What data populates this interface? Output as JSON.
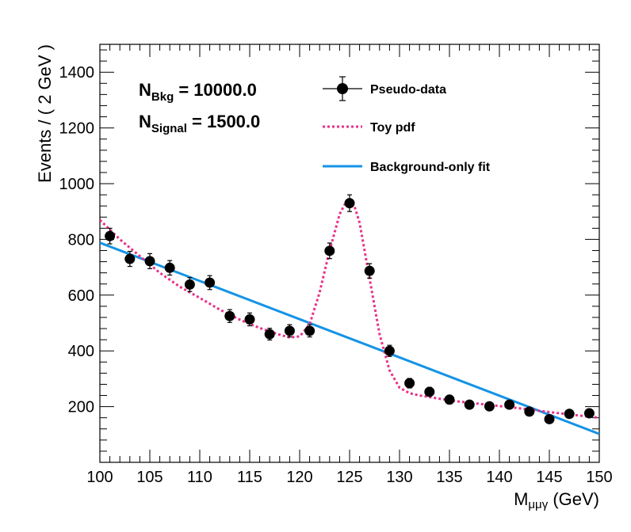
{
  "chart_data": {
    "type": "scatter",
    "xlabel": {
      "main": "M",
      "sub": "μμγ",
      "unit": " (GeV)"
    },
    "ylabel": "Events / ( 2 GeV )",
    "xlim": [
      100,
      150
    ],
    "ylim": [
      0,
      1500
    ],
    "x_ticks": [
      100,
      105,
      110,
      115,
      120,
      125,
      130,
      135,
      140,
      145,
      150
    ],
    "y_ticks": [
      200,
      400,
      600,
      800,
      1000,
      1200,
      1400
    ],
    "annotations": [
      {
        "main": "N",
        "sub": "Bkg",
        "value": " = 10000.0"
      },
      {
        "main": "N",
        "sub": "Signal",
        "value": " = 1500.0"
      }
    ],
    "legend": {
      "position": "top-center",
      "entries": [
        {
          "label": "Pseudo-data",
          "style": "marker"
        },
        {
          "label": "Toy pdf",
          "style": "dotted",
          "color": "#e8308a"
        },
        {
          "label": "Background-only fit",
          "style": "line",
          "color": "#1593e6"
        }
      ]
    },
    "series": [
      {
        "name": "Pseudo-data",
        "style": "marker",
        "color": "#000000",
        "x": [
          101,
          103,
          105,
          107,
          109,
          111,
          113,
          115,
          117,
          119,
          121,
          123,
          125,
          127,
          129,
          131,
          133,
          135,
          137,
          139,
          141,
          143,
          145,
          147,
          149
        ],
        "y": [
          812,
          730,
          722,
          698,
          638,
          645,
          525,
          513,
          460,
          472,
          472,
          759,
          930,
          687,
          400,
          284,
          253,
          225,
          207,
          201,
          207,
          182,
          155,
          174,
          176
        ],
        "yerr": [
          28,
          27,
          27,
          26,
          25,
          25,
          23,
          23,
          21,
          22,
          22,
          28,
          30,
          26,
          20,
          17,
          16,
          15,
          14,
          14,
          14,
          13,
          12,
          13,
          13
        ]
      },
      {
        "name": "Toy pdf",
        "style": "dotted",
        "color": "#e8308a",
        "x": [
          100,
          102,
          104,
          106,
          108,
          110,
          112,
          114,
          116,
          118,
          119,
          120,
          121,
          122,
          123,
          124,
          124.5,
          125,
          125.5,
          126,
          127,
          128,
          129,
          130,
          131,
          132,
          134,
          136,
          138,
          140,
          142,
          144,
          146,
          148,
          150
        ],
        "y": [
          870,
          800,
          740,
          680,
          630,
          590,
          548,
          512,
          482,
          458,
          448,
          452,
          495,
          610,
          760,
          890,
          925,
          935,
          918,
          860,
          660,
          460,
          330,
          268,
          248,
          240,
          228,
          218,
          210,
          202,
          194,
          185,
          176,
          168,
          160
        ]
      },
      {
        "name": "Background-only fit",
        "style": "line",
        "color": "#1593e6",
        "x": [
          100,
          150
        ],
        "y": [
          788,
          102
        ]
      }
    ]
  }
}
